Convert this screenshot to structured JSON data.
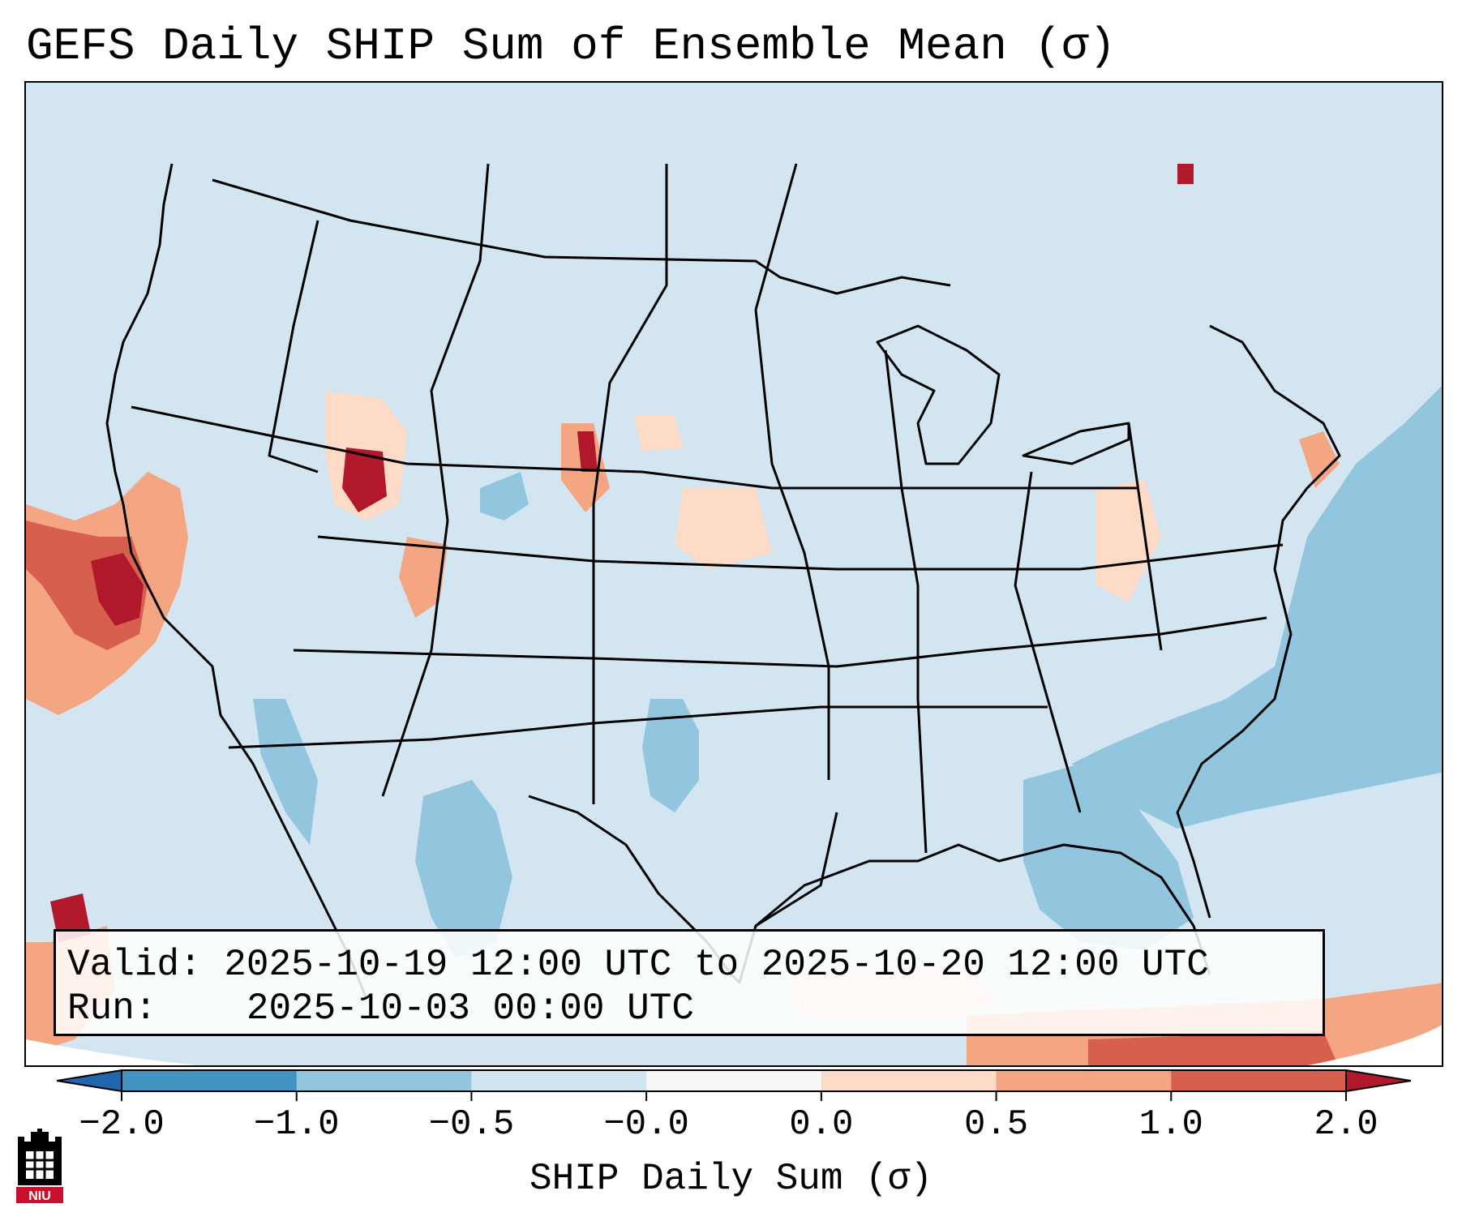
{
  "title": "GEFS Daily SHIP Sum of Ensemble Mean (σ)",
  "info": {
    "valid_label": "Valid:",
    "valid_value": "2025-10-19 12:00 UTC to 2025-10-20 12:00 UTC",
    "run_label": "Run:",
    "run_value": "2025-10-03 00:00 UTC"
  },
  "colorbar": {
    "label": "SHIP Daily Sum (σ)",
    "ticks": [
      "−2.0",
      "−1.0",
      "−0.5",
      "−0.0",
      "0.0",
      "0.5",
      "1.0",
      "2.0"
    ],
    "bin_colors": [
      "#4393c3",
      "#92c5de",
      "#d1e5f0",
      "#f7f7f7",
      "#fddbc7",
      "#f4a582",
      "#d6604d"
    ],
    "under_color": "#2166ac",
    "over_color": "#b2182b"
  },
  "map": {
    "field": "SHIP daily sum anomaly",
    "background_bin_color": "#d1e5f0",
    "highlights": [
      {
        "region": "northern California / Pacific coast",
        "level": "high",
        "color": "#b2182b"
      },
      {
        "region": "Utah / Wyoming",
        "level": "high",
        "color": "#b2182b"
      },
      {
        "region": "Gulf of Mexico / Florida",
        "level": "low",
        "color": "#92c5de"
      },
      {
        "region": "western Atlantic",
        "level": "low",
        "color": "#92c5de"
      },
      {
        "region": "Caribbean / Cuba",
        "level": "elevated",
        "color": "#f4a582"
      }
    ]
  },
  "logo": {
    "text": "NIU"
  }
}
